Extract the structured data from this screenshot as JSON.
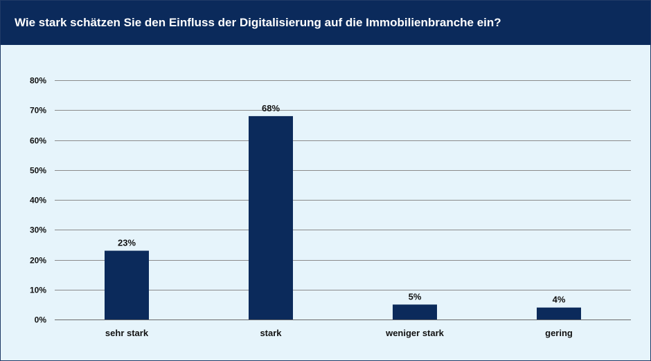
{
  "header": {
    "title": "Wie stark schätzen Sie den Einfluss der Digitalisierung auf die Immobilienbranche ein?"
  },
  "colors": {
    "bar": "#0b2a5b",
    "header_bg": "#0b2a5b",
    "plot_bg": "#e6f4fb",
    "gridline": "#8a8a8a"
  },
  "chart_data": {
    "type": "bar",
    "title": "Wie stark schätzen Sie den Einfluss der Digitalisierung auf die Immobilienbranche ein?",
    "categories": [
      "sehr stark",
      "stark",
      "weniger stark",
      "gering"
    ],
    "values": [
      23,
      68,
      5,
      4
    ],
    "data_labels": [
      "23%",
      "68%",
      "5%",
      "4%"
    ],
    "ylim": [
      0,
      80
    ],
    "yticks": [
      0,
      10,
      20,
      30,
      40,
      50,
      60,
      70,
      80
    ],
    "ytick_labels": [
      "0%",
      "10%",
      "20%",
      "30%",
      "40%",
      "50%",
      "60%",
      "70%",
      "80%"
    ],
    "xlabel": "",
    "ylabel": "",
    "grid": true,
    "legend": "none"
  }
}
